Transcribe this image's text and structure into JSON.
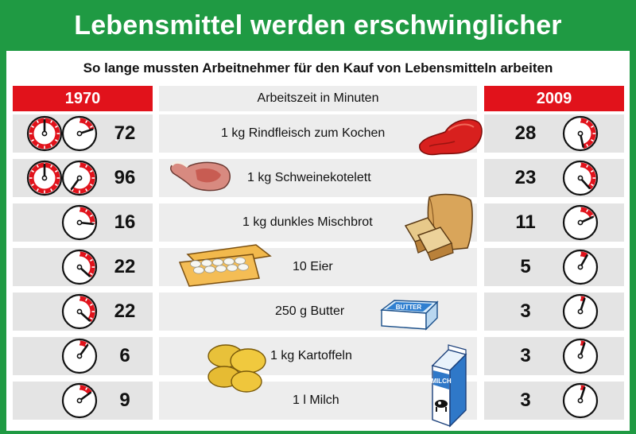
{
  "title": "Lebensmittel werden erschwinglicher",
  "chart_data": {
    "type": "table",
    "subtitle": "So lange mussten Arbeitnehmer für den Kauf von Lebensmitteln arbeiten",
    "unit_label": "Arbeitszeit in Minuten",
    "columns": [
      "1970",
      "2009"
    ],
    "items": [
      {
        "label": "1 kg Rindfleisch zum Kochen",
        "v1970": 72,
        "v2009": 28,
        "icon": "beef-icon"
      },
      {
        "label": "1 kg Schweinekotelett",
        "v1970": 96,
        "v2009": 23,
        "icon": "pork-chop-icon"
      },
      {
        "label": "1 kg dunkles Mischbrot",
        "v1970": 16,
        "v2009": 11,
        "icon": "bread-icon"
      },
      {
        "label": "10 Eier",
        "v1970": 22,
        "v2009": 5,
        "icon": "egg-carton-icon"
      },
      {
        "label": "250 g Butter",
        "v1970": 22,
        "v2009": 3,
        "icon": "butter-icon"
      },
      {
        "label": "1 kg Kartoffeln",
        "v1970": 6,
        "v2009": 3,
        "icon": "potatoes-icon"
      },
      {
        "label": "1 l Milch",
        "v1970": 9,
        "v2009": 3,
        "icon": "milk-carton-icon"
      }
    ]
  },
  "icons": {
    "butter_text": "BUTTER",
    "milk_text": "MILCH"
  },
  "colors": {
    "frame_green": "#1f9a43",
    "header_red": "#e1121b",
    "clock_red": "#e1121b"
  }
}
